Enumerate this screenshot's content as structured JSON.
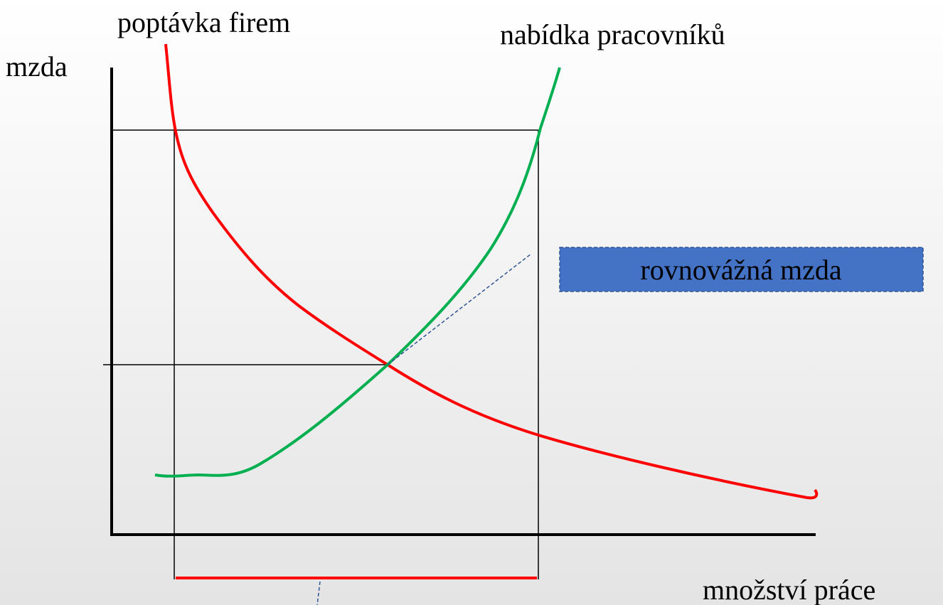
{
  "demand_label": "poptávka firem",
  "supply_label": "nabídka pracovníků",
  "y_axis_label": "mzda",
  "callout": "rovnovážná mzda",
  "x_axis_label": "množství práce"
}
